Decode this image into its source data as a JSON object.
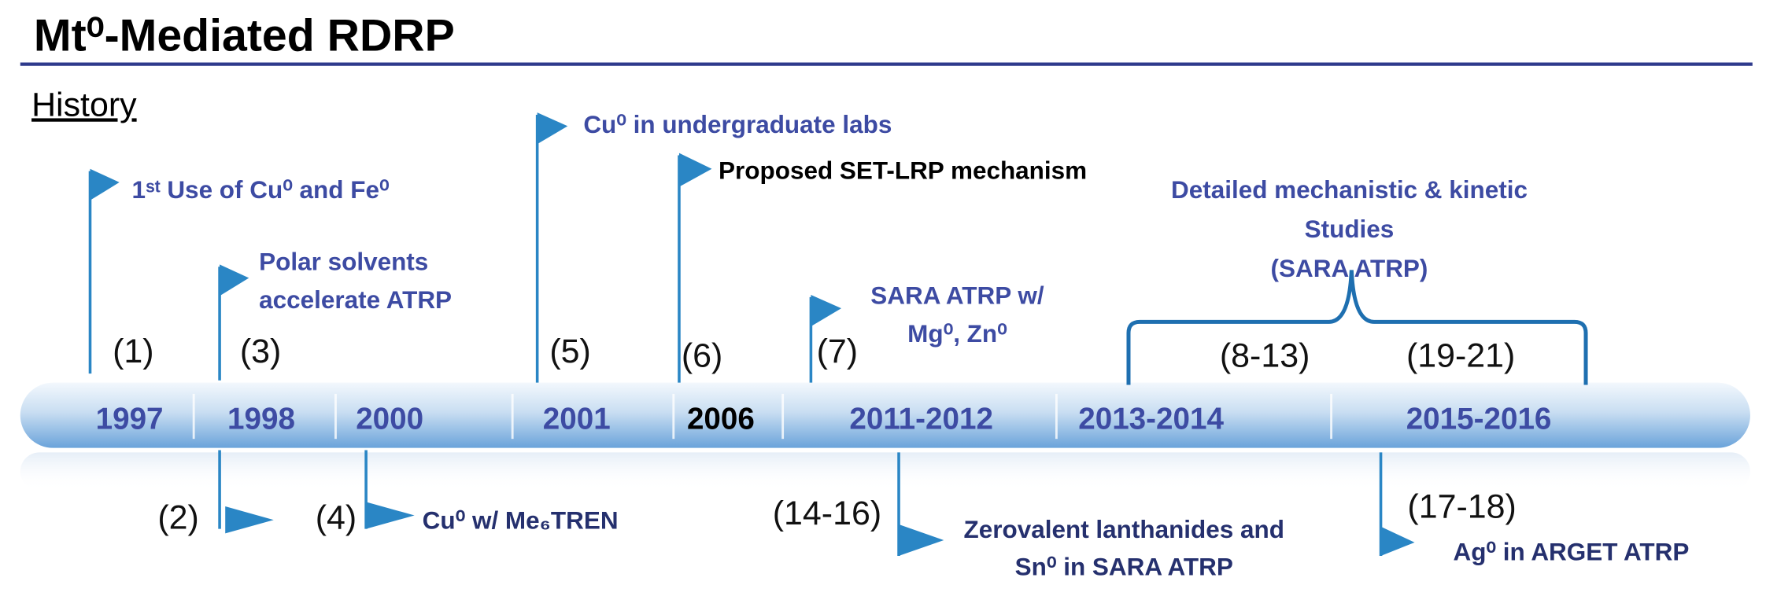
{
  "header": {
    "title": "Mt⁰-Mediated RDRP",
    "subtitle": "History"
  },
  "timeline": {
    "years": [
      "1997",
      "1998",
      "2000",
      "2001",
      "2006",
      "2011-2012",
      "2013-2014",
      "2015-2016"
    ]
  },
  "events_above": [
    {
      "ref": "(1)",
      "lines": [
        "1ˢᵗ Use of Cu⁰ and Fe⁰"
      ]
    },
    {
      "ref": "(3)",
      "lines": [
        "Polar solvents",
        "accelerate ATRP"
      ]
    },
    {
      "ref": "(5)",
      "lines": [
        "Cu⁰ in undergraduate labs"
      ]
    },
    {
      "ref": "(6)",
      "lines": [
        "Proposed SET-LRP mechanism"
      ]
    },
    {
      "ref": "(7)",
      "lines": [
        "SARA ATRP w/",
        "Mg⁰, Zn⁰"
      ]
    },
    {
      "refs": [
        "(8-13)",
        "(19-21)"
      ],
      "lines": [
        "Detailed mechanistic & kinetic",
        "Studies",
        "(SARA ATRP)"
      ]
    }
  ],
  "events_below": [
    {
      "ref": "(2)"
    },
    {
      "ref": "(4)",
      "lines": [
        "Cu⁰ w/ Me₆TREN"
      ]
    },
    {
      "ref": "(14-16)",
      "lines": [
        "Zerovalent lanthanides and",
        "Sn⁰ in SARA ATRP"
      ]
    },
    {
      "ref": "(17-18)",
      "lines": [
        "Ag⁰ in ARGET ATRP"
      ]
    }
  ]
}
